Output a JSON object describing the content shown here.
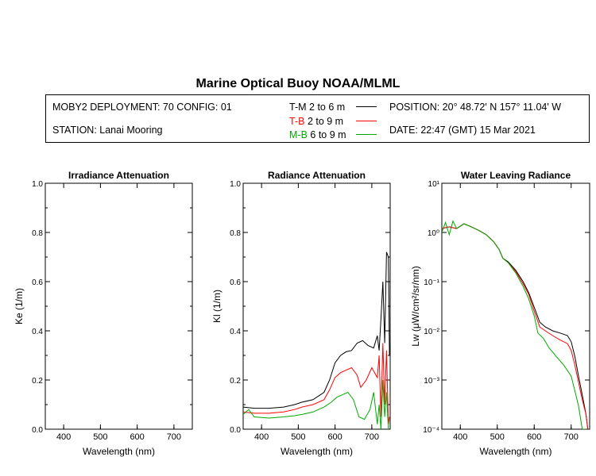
{
  "title": "Marine Optical Buoy NOAA/MLML",
  "info": {
    "deployment": "MOBY2 DEPLOYMENT: 70 CONFIG: 01",
    "station": "STATION: Lanai Mooring",
    "position": "POSITION: 20° 48.72' N   157° 11.04' W",
    "date": "DATE: 22:47 (GMT) 15 Mar 2021",
    "legend": [
      {
        "code": "T-M",
        "depth": "2 to 6  m",
        "color": "#000000"
      },
      {
        "code": "T-B",
        "depth": "2 to 9  m",
        "color": "#ff0000"
      },
      {
        "code": "M-B",
        "depth": "6 to 9  m",
        "color": "#00aa00"
      }
    ]
  },
  "chart_data": [
    {
      "type": "line",
      "title": "Irradiance Attenuation",
      "xlabel": "Wavelength (nm)",
      "ylabel": "Ke  (1/m)",
      "xlim": [
        350,
        750
      ],
      "ylim": [
        0,
        1.0
      ],
      "xticks": [
        "400",
        "500",
        "600",
        "700"
      ],
      "yticks": [
        "0.0",
        "0.2",
        "0.4",
        "0.6",
        "0.8",
        "1.0"
      ],
      "series": []
    },
    {
      "type": "line",
      "title": "Radiance Attenuation",
      "xlabel": "Wavelength (nm)",
      "ylabel": "Kl  (1/m)",
      "xlim": [
        350,
        750
      ],
      "ylim": [
        0,
        1.0
      ],
      "xticks": [
        "400",
        "500",
        "600",
        "700"
      ],
      "yticks": [
        "0.0",
        "0.2",
        "0.4",
        "0.6",
        "0.8",
        "1.0"
      ],
      "series": [
        {
          "name": "T-M",
          "color": "#000000",
          "x": [
            350,
            380,
            420,
            460,
            490,
            510,
            540,
            570,
            585,
            600,
            615,
            630,
            645,
            660,
            675,
            690,
            705,
            715,
            720,
            725,
            730,
            735,
            740,
            745,
            748
          ],
          "y": [
            0.09,
            0.085,
            0.085,
            0.09,
            0.1,
            0.11,
            0.12,
            0.15,
            0.2,
            0.27,
            0.3,
            0.315,
            0.32,
            0.35,
            0.36,
            0.34,
            0.33,
            0.38,
            0.32,
            0.45,
            0.6,
            0.35,
            0.72,
            0.7,
            0.3
          ]
        },
        {
          "name": "T-B",
          "color": "#ff0000",
          "x": [
            350,
            380,
            420,
            460,
            490,
            510,
            540,
            570,
            585,
            600,
            615,
            630,
            645,
            660,
            670,
            685,
            700,
            715,
            720,
            725,
            730,
            735,
            740,
            745,
            748
          ],
          "y": [
            0.07,
            0.065,
            0.065,
            0.07,
            0.08,
            0.09,
            0.1,
            0.12,
            0.16,
            0.21,
            0.23,
            0.24,
            0.25,
            0.22,
            0.17,
            0.2,
            0.25,
            0.21,
            0.3,
            0.05,
            0.35,
            0.1,
            0.32,
            0.02,
            0.05
          ]
        },
        {
          "name": "M-B",
          "color": "#00aa00",
          "x": [
            350,
            365,
            380,
            420,
            460,
            490,
            510,
            540,
            570,
            590,
            605,
            620,
            635,
            650,
            665,
            680,
            695,
            705,
            715,
            720,
            725,
            730,
            735,
            740,
            745
          ],
          "y": [
            0.06,
            0.08,
            0.05,
            0.045,
            0.05,
            0.055,
            0.06,
            0.07,
            0.09,
            0.11,
            0.13,
            0.14,
            0.15,
            0.12,
            0.05,
            0.04,
            0.08,
            0.15,
            0.02,
            0.1,
            0.0,
            0.2,
            0.05,
            0.15,
            0.0
          ]
        }
      ]
    },
    {
      "type": "line",
      "title": "Water Leaving Radiance",
      "xlabel": "Wavelength (nm)",
      "ylabel": "Lw  (μW/cm²/sr/nm)",
      "yscale": "log",
      "xlim": [
        350,
        750
      ],
      "ylim": [
        0.0001,
        10
      ],
      "xticks": [
        "400",
        "500",
        "600",
        "700"
      ],
      "yticks": [
        "10⁻⁴",
        "10⁻³",
        "10⁻²",
        "10⁻¹",
        "10⁰",
        "10¹"
      ],
      "series": [
        {
          "name": "T-M",
          "color": "#000000",
          "x": [
            350,
            370,
            390,
            410,
            430,
            450,
            470,
            490,
            505,
            515,
            530,
            550,
            570,
            585,
            600,
            615,
            630,
            650,
            670,
            690,
            700,
            710,
            720,
            730,
            740,
            745
          ],
          "y": [
            1.2,
            1.3,
            1.2,
            1.5,
            1.3,
            1.1,
            0.9,
            0.65,
            0.45,
            0.3,
            0.25,
            0.17,
            0.1,
            0.06,
            0.03,
            0.015,
            0.012,
            0.01,
            0.009,
            0.008,
            0.006,
            0.003,
            0.0012,
            0.0005,
            0.0002,
            0.0001
          ]
        },
        {
          "name": "T-B",
          "color": "#ff0000",
          "x": [
            350,
            370,
            390,
            410,
            430,
            450,
            470,
            490,
            505,
            515,
            530,
            550,
            570,
            585,
            600,
            615,
            630,
            650,
            670,
            690,
            700,
            710,
            720,
            730,
            740,
            745
          ],
          "y": [
            1.2,
            1.3,
            1.2,
            1.5,
            1.3,
            1.1,
            0.9,
            0.65,
            0.45,
            0.3,
            0.24,
            0.16,
            0.09,
            0.055,
            0.025,
            0.012,
            0.01,
            0.008,
            0.0065,
            0.0055,
            0.004,
            0.002,
            0.0009,
            0.0004,
            0.0002,
            0.0001
          ]
        },
        {
          "name": "M-B",
          "color": "#00aa00",
          "x": [
            350,
            360,
            370,
            380,
            390,
            410,
            430,
            450,
            470,
            490,
            505,
            515,
            530,
            550,
            570,
            585,
            600,
            610,
            625,
            640,
            660,
            680,
            700,
            710,
            720,
            730,
            740
          ],
          "y": [
            1.0,
            1.6,
            0.9,
            1.7,
            1.2,
            1.5,
            1.3,
            1.1,
            0.9,
            0.65,
            0.45,
            0.3,
            0.24,
            0.15,
            0.08,
            0.045,
            0.02,
            0.009,
            0.007,
            0.0045,
            0.003,
            0.002,
            0.0012,
            0.0006,
            0.0003,
            0.0001,
            0.0001
          ]
        }
      ]
    }
  ]
}
